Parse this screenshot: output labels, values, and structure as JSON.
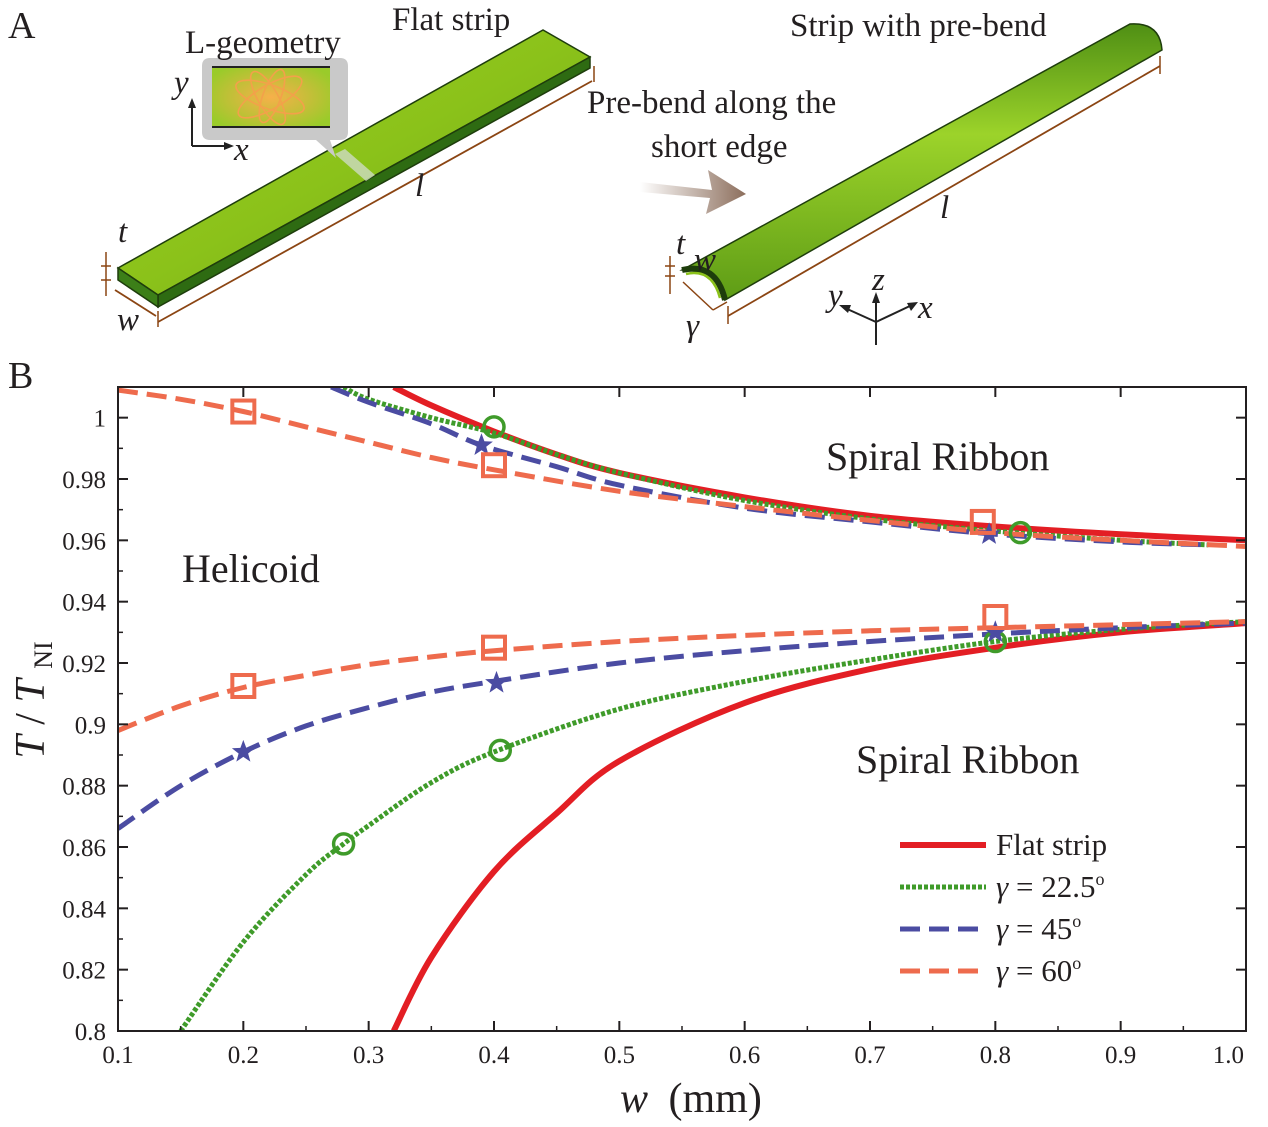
{
  "panel_a": {
    "letter": "A",
    "flat_strip_title": "Flat strip",
    "prebend_strip_title": "Strip with pre-bend",
    "inset_title": "L-geometry",
    "arrow_caption_line1": "Pre-bend along the",
    "arrow_caption_line2": "short edge",
    "label_t": "t",
    "label_w": "w",
    "label_l": "l",
    "label_gamma": "γ",
    "axis_x": "x",
    "axis_y": "y",
    "axis_z": "z",
    "colors": {
      "strip_top": "#8bc21a",
      "strip_side": "#2e6b12",
      "dim_line": "#8b4513",
      "arrow": "#9b7d6a"
    }
  },
  "chart_data": {
    "panel_letter": "B",
    "type": "line",
    "xlabel_var": "w",
    "xlabel_unit": "(mm)",
    "ylabel_var": "T",
    "ylabel_den": "T",
    "ylabel_sub": "NI",
    "xlim": [
      0.1,
      1.0
    ],
    "ylim": [
      0.8,
      1.01
    ],
    "xticks": [
      "0.1",
      "0.2",
      "0.3",
      "0.4",
      "0.5",
      "0.6",
      "0.7",
      "0.8",
      "0.9",
      "1.0"
    ],
    "yticks": [
      "0.8",
      "0.82",
      "0.84",
      "0.86",
      "0.88",
      "0.9",
      "0.92",
      "0.94",
      "0.96",
      "0.98",
      "1"
    ],
    "region_labels": {
      "upper": "Spiral Ribbon",
      "middle": "Helicoid",
      "lower": "Spiral Ribbon"
    },
    "series": [
      {
        "name": "Flat strip",
        "legend_text": "Flat strip",
        "color": "#e31e24",
        "style": "solid",
        "marker": "none",
        "upper": {
          "x": [
            0.32,
            0.35,
            0.4,
            0.45,
            0.5,
            0.6,
            0.7,
            0.8,
            0.9,
            1.0
          ],
          "y": [
            1.01,
            1.004,
            0.9955,
            0.988,
            0.982,
            0.974,
            0.968,
            0.9645,
            0.962,
            0.96
          ]
        },
        "lower": {
          "x": [
            0.32,
            0.35,
            0.4,
            0.45,
            0.5,
            0.6,
            0.7,
            0.8,
            0.9,
            1.0
          ],
          "y": [
            0.8,
            0.824,
            0.852,
            0.871,
            0.888,
            0.907,
            0.918,
            0.925,
            0.93,
            0.933
          ]
        }
      },
      {
        "name": "γ = 22.5°",
        "legend_symbol": "γ = 22.5",
        "legend_degree": "o",
        "color": "#3f9b2a",
        "style": "dotted",
        "marker": "circle",
        "upper": {
          "x": [
            0.28,
            0.3,
            0.35,
            0.4,
            0.45,
            0.5,
            0.6,
            0.7,
            0.8,
            0.9,
            0.97
          ],
          "y": [
            1.01,
            1.006,
            1.0,
            0.995,
            0.988,
            0.982,
            0.973,
            0.967,
            0.963,
            0.96,
            0.9585
          ]
        },
        "lower": {
          "x": [
            0.15,
            0.2,
            0.25,
            0.28,
            0.3,
            0.35,
            0.4,
            0.5,
            0.6,
            0.7,
            0.8,
            0.9,
            1.0
          ],
          "y": [
            0.8,
            0.829,
            0.851,
            0.861,
            0.867,
            0.881,
            0.891,
            0.905,
            0.914,
            0.921,
            0.927,
            0.931,
            0.9335
          ]
        },
        "markers_upper": {
          "x": [
            0.4,
            0.82
          ],
          "y": [
            0.997,
            0.9625
          ]
        },
        "markers_lower": {
          "x": [
            0.28,
            0.405,
            0.8
          ],
          "y": [
            0.861,
            0.8915,
            0.927
          ]
        }
      },
      {
        "name": "γ = 45°",
        "legend_symbol": "γ = 45",
        "legend_degree": "o",
        "color": "#4b4ca2",
        "style": "dashed",
        "marker": "star",
        "upper": {
          "x": [
            0.27,
            0.3,
            0.35,
            0.39,
            0.45,
            0.5,
            0.6,
            0.7,
            0.8,
            0.9,
            0.97
          ],
          "y": [
            1.01,
            1.005,
            0.998,
            0.991,
            0.984,
            0.978,
            0.9705,
            0.966,
            0.962,
            0.9595,
            0.9585
          ]
        },
        "lower": {
          "x": [
            0.1,
            0.15,
            0.2,
            0.25,
            0.3,
            0.35,
            0.4,
            0.5,
            0.6,
            0.7,
            0.8,
            0.9,
            1.0
          ],
          "y": [
            0.866,
            0.88,
            0.891,
            0.8995,
            0.9055,
            0.9105,
            0.914,
            0.92,
            0.924,
            0.927,
            0.9295,
            0.9315,
            0.933
          ]
        },
        "markers_upper": {
          "x": [
            0.39,
            0.795
          ],
          "y": [
            0.991,
            0.962
          ]
        },
        "markers_lower": {
          "x": [
            0.2,
            0.402,
            0.8
          ],
          "y": [
            0.891,
            0.9135,
            0.93
          ]
        }
      },
      {
        "name": "γ = 60°",
        "legend_symbol": "γ = 60",
        "legend_degree": "o",
        "color": "#ee6b4d",
        "style": "dashed",
        "marker": "square",
        "upper": {
          "x": [
            0.1,
            0.15,
            0.2,
            0.25,
            0.3,
            0.35,
            0.4,
            0.5,
            0.6,
            0.7,
            0.8,
            0.9,
            1.0
          ],
          "y": [
            1.009,
            1.006,
            1.002,
            0.997,
            0.992,
            0.987,
            0.983,
            0.976,
            0.971,
            0.9665,
            0.9625,
            0.96,
            0.958
          ]
        },
        "lower": {
          "x": [
            0.1,
            0.15,
            0.2,
            0.25,
            0.3,
            0.35,
            0.4,
            0.5,
            0.6,
            0.7,
            0.8,
            0.9,
            1.0
          ],
          "y": [
            0.898,
            0.906,
            0.912,
            0.916,
            0.9195,
            0.922,
            0.924,
            0.927,
            0.929,
            0.9305,
            0.9315,
            0.9325,
            0.9335
          ]
        },
        "markers_upper": {
          "x": [
            0.2,
            0.4,
            0.79
          ],
          "y": [
            1.002,
            0.9845,
            0.966
          ]
        },
        "markers_lower": {
          "x": [
            0.2,
            0.4,
            0.8
          ],
          "y": [
            0.9125,
            0.925,
            0.935
          ]
        }
      }
    ],
    "legend_position": "bottom-right",
    "grid": false
  }
}
